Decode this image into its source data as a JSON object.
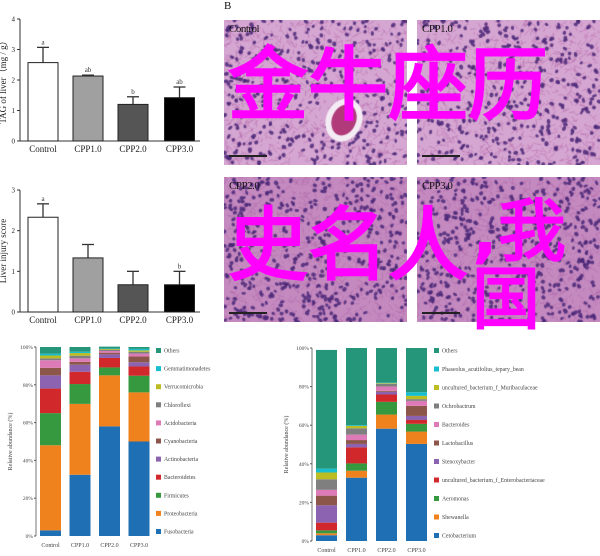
{
  "panel_b_label": "B",
  "histology": [
    {
      "label": "Control"
    },
    {
      "label": "CPP1.0"
    },
    {
      "label": "CPP2.0"
    },
    {
      "label": "CPP3.0"
    }
  ],
  "overlay_text": {
    "line1": "金牛座历史名人",
    "line2": ",我国",
    "color": "#ff00ff"
  },
  "chart_data": [
    {
      "type": "bar",
      "title": "",
      "xlabel": "",
      "ylabel": "TAG of liver（mg / g）",
      "ylim": [
        0,
        4
      ],
      "yticks": [
        "0",
        "1",
        "2",
        "3",
        "4"
      ],
      "categories": [
        "Control",
        "CPP1.0",
        "CPP2.0",
        "CPP3.0"
      ],
      "values": [
        2.57,
        2.13,
        1.2,
        1.42
      ],
      "errors": [
        0.5,
        0.03,
        0.25,
        0.35
      ],
      "significance": [
        "a",
        "ab",
        "b",
        "ab"
      ],
      "colors": [
        "#ffffff",
        "#a0a0a0",
        "#555555",
        "#000000"
      ]
    },
    {
      "type": "bar",
      "title": "",
      "xlabel": "",
      "ylabel": "Liver injury score",
      "ylim": [
        0,
        3
      ],
      "yticks": [
        "0",
        "1",
        "2",
        "3"
      ],
      "categories": [
        "Control",
        "CPP1.0",
        "CPP2.0",
        "CPP3.0"
      ],
      "values": [
        2.33,
        1.33,
        0.67,
        0.67
      ],
      "errors": [
        0.33,
        0.33,
        0.33,
        0.33
      ],
      "significance": [
        "a",
        "",
        "",
        "b"
      ],
      "colors": [
        "#ffffff",
        "#a0a0a0",
        "#555555",
        "#000000"
      ]
    },
    {
      "type": "bar",
      "stacked": true,
      "title": "",
      "xlabel": "",
      "ylabel": "Relative abundance (%)",
      "ylim": [
        0,
        100
      ],
      "yticks": [
        "0%",
        "20%",
        "40%",
        "60%",
        "80%",
        "100%"
      ],
      "legend_position": "right",
      "categories": [
        "Control",
        "CPP1.0",
        "CPP2.0",
        "CPP3.0"
      ],
      "series": [
        {
          "name": "Fusobacteria",
          "color": "#1f6fb4",
          "values": [
            3,
            32.4,
            58,
            50
          ]
        },
        {
          "name": "Proteobacteria",
          "color": "#f0821e",
          "values": [
            45,
            37.5,
            27,
            26
          ]
        },
        {
          "name": "Firmicutes",
          "color": "#37993f",
          "values": [
            17,
            10.5,
            4.2,
            8.8
          ]
        },
        {
          "name": "Bacteroidetes",
          "color": "#d1282c",
          "values": [
            13,
            6.5,
            5,
            4.9
          ]
        },
        {
          "name": "Actinobacteria",
          "color": "#8c63b0",
          "values": [
            7,
            3.7,
            1.9,
            2.2
          ]
        },
        {
          "name": "Cyanobacteria",
          "color": "#8c564b",
          "values": [
            4,
            1.6,
            0.9,
            3.1
          ]
        },
        {
          "name": "Acidobacteria",
          "color": "#df7ab8",
          "values": [
            4,
            1.8,
            0.9,
            1.5
          ]
        },
        {
          "name": "Chloroflexi",
          "color": "#7f7f7f",
          "values": [
            1,
            1.4,
            0.7,
            1
          ]
        },
        {
          "name": "Verrucomicrobia",
          "color": "#bcbd22",
          "values": [
            1.5,
            1.4,
            0.4,
            0.7
          ]
        },
        {
          "name": "Gemmatimonadetes",
          "color": "#17becf",
          "values": [
            1,
            0.7,
            0.2,
            0.8
          ]
        },
        {
          "name": "Others",
          "color": "#26967a",
          "values": [
            3.5,
            2.5,
            1,
            1
          ]
        }
      ]
    },
    {
      "type": "bar",
      "stacked": true,
      "title": "",
      "xlabel": "",
      "ylabel": "Relative abundance (%)",
      "ylim": [
        0,
        100
      ],
      "yticks": [
        "0%",
        "20%",
        "40%",
        "60%",
        "80%",
        "100%"
      ],
      "legend_position": "right",
      "categories": [
        "Control",
        "CPP1.0",
        "CPP2.0",
        "CPP3.0"
      ],
      "series": [
        {
          "name": "Cetobacterium",
          "color": "#1f6fb4",
          "values": [
            3,
            32.8,
            58.2,
            50.3
          ]
        },
        {
          "name": "Shewanella",
          "color": "#f0821e",
          "values": [
            1,
            3.6,
            7.3,
            6.4
          ]
        },
        {
          "name": "Aeromonas",
          "color": "#37993f",
          "values": [
            1.5,
            3.8,
            6.6,
            4
          ]
        },
        {
          "name": "uncultured_bacterium_f_Enterobacteriaceae",
          "color": "#d1282c",
          "values": [
            4,
            8.3,
            3.8,
            2
          ]
        },
        {
          "name": "Stenoxybacter",
          "color": "#8c63b0",
          "values": [
            9,
            1.8,
            1.4,
            2.1
          ]
        },
        {
          "name": "Lactobacillus",
          "color": "#8c564b",
          "values": [
            5,
            2,
            0.5,
            5.2
          ]
        },
        {
          "name": "Bacteroides",
          "color": "#df7ab8",
          "values": [
            3,
            2.8,
            2.2,
            2.6
          ]
        },
        {
          "name": "Ochrobactrum",
          "color": "#7f7f7f",
          "values": [
            5.5,
            3.3,
            1.5,
            0.9
          ]
        },
        {
          "name": "uncultured_bacterium_f_Muribaculaceae",
          "color": "#bcbd22",
          "values": [
            3.5,
            1.2,
            0.3,
            1.7
          ]
        },
        {
          "name": "Phaseolus_acutifolius_tepary_bean",
          "color": "#17becf",
          "values": [
            2,
            0.4,
            0.2,
            1.9
          ]
        },
        {
          "name": "Others",
          "color": "#26967a",
          "values": [
            61.5,
            40,
            18,
            22.9
          ]
        }
      ]
    }
  ]
}
